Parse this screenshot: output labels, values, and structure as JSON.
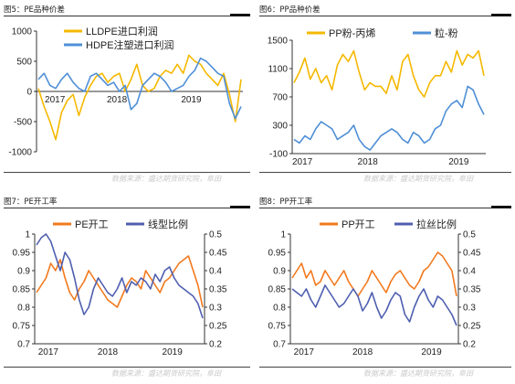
{
  "source_text": "数据来源：盛达期货研究院，阜田",
  "colors": {
    "orange": "#f2791d",
    "blue": "#4f8fd6",
    "yellow": "#f5b800"
  },
  "panels": [
    {
      "id": "p5",
      "title": "图5：PE品种价差",
      "chart_data": {
        "type": "line",
        "ylim": [
          -1000,
          1000
        ],
        "yticks": [
          -1000,
          -500,
          0,
          500,
          1000
        ],
        "x_ticks": [
          "2017",
          "2018",
          "2019"
        ],
        "legend_position": "top-left",
        "series": [
          {
            "name": "LLDPE进口利润",
            "color": "#f5b800",
            "axis": "left",
            "values": [
              50,
              -250,
              -500,
              -800,
              -350,
              -150,
              -50,
              -400,
              -100,
              100,
              250,
              300,
              150,
              250,
              300,
              0,
              200,
              450,
              100,
              0,
              50,
              250,
              350,
              300,
              450,
              300,
              600,
              500,
              450,
              300,
              200,
              100,
              300,
              -50,
              -500,
              200
            ]
          },
          {
            "name": "HDPE注塑进口利润",
            "color": "#4f8fd6",
            "axis": "left",
            "values": [
              200,
              300,
              100,
              50,
              200,
              300,
              150,
              50,
              0,
              250,
              300,
              200,
              100,
              150,
              0,
              100,
              -300,
              -200,
              100,
              200,
              300,
              250,
              150,
              0,
              50,
              100,
              250,
              350,
              550,
              500,
              400,
              300,
              250,
              -200,
              -450,
              -250
            ]
          }
        ]
      }
    },
    {
      "id": "p6",
      "title": "图6：PP品种价差",
      "chart_data": {
        "type": "line",
        "ylim": [
          -100,
          1500
        ],
        "yticks": [
          -100,
          300,
          700,
          1100,
          1500
        ],
        "x_ticks": [
          "2017",
          "2018",
          "2019"
        ],
        "legend_position": "top",
        "series": [
          {
            "name": "PP粉-丙烯",
            "color": "#f5b800",
            "axis": "left",
            "values": [
              900,
              1050,
              1250,
              950,
              1100,
              900,
              1000,
              800,
              1150,
              1300,
              1200,
              1350,
              1050,
              800,
              900,
              850,
              850,
              750,
              1000,
              800,
              1200,
              1300,
              1000,
              800,
              700,
              900,
              1000,
              1000,
              1200,
              1050,
              1350,
              1150,
              1300,
              1250,
              1350,
              1000
            ]
          },
          {
            "name": "粒-粉",
            "color": "#4f8fd6",
            "axis": "left",
            "values": [
              100,
              50,
              150,
              100,
              250,
              350,
              300,
              250,
              100,
              150,
              200,
              300,
              100,
              0,
              -50,
              50,
              150,
              200,
              250,
              200,
              100,
              50,
              200,
              150,
              50,
              100,
              250,
              300,
              500,
              600,
              650,
              550,
              850,
              800,
              600,
              450
            ]
          }
        ]
      }
    },
    {
      "id": "p7",
      "title": "图7：PE开工率",
      "chart_data": {
        "type": "line",
        "ylim": [
          0.7,
          1.0
        ],
        "yticks": [
          0.7,
          0.75,
          0.8,
          0.85,
          0.9,
          0.95,
          1
        ],
        "y2lim": [
          0.2,
          0.5
        ],
        "y2ticks": [
          0.2,
          0.25,
          0.3,
          0.35,
          0.4,
          0.45,
          0.5
        ],
        "x_ticks": [
          "2017",
          "2018",
          "2019"
        ],
        "legend_position": "top",
        "series": [
          {
            "name": "PE开工",
            "color": "#f2791d",
            "axis": "left",
            "values": [
              0.84,
              0.86,
              0.88,
              0.92,
              0.9,
              0.93,
              0.88,
              0.84,
              0.82,
              0.85,
              0.87,
              0.9,
              0.88,
              0.86,
              0.84,
              0.82,
              0.81,
              0.8,
              0.83,
              0.86,
              0.88,
              0.87,
              0.85,
              0.9,
              0.88,
              0.86,
              0.84,
              0.87,
              0.88,
              0.9,
              0.92,
              0.93,
              0.94,
              0.9,
              0.86,
              0.8
            ]
          },
          {
            "name": "线型比例",
            "color": "#4f5fb0",
            "axis": "right",
            "values": [
              0.47,
              0.49,
              0.5,
              0.48,
              0.44,
              0.4,
              0.45,
              0.43,
              0.38,
              0.32,
              0.28,
              0.3,
              0.35,
              0.38,
              0.36,
              0.34,
              0.33,
              0.35,
              0.38,
              0.34,
              0.37,
              0.36,
              0.38,
              0.37,
              0.35,
              0.39,
              0.37,
              0.4,
              0.41,
              0.38,
              0.36,
              0.35,
              0.34,
              0.33,
              0.31,
              0.27
            ]
          }
        ]
      }
    },
    {
      "id": "p8",
      "title": "图8：PP开工率",
      "chart_data": {
        "type": "line",
        "ylim": [
          0.7,
          1.0
        ],
        "yticks": [
          0.7,
          0.75,
          0.8,
          0.85,
          0.9,
          0.95,
          1
        ],
        "y2lim": [
          0.2,
          0.5
        ],
        "y2ticks": [
          0.2,
          0.25,
          0.3,
          0.35,
          0.4,
          0.45,
          0.5
        ],
        "x_ticks": [
          "2017",
          "2018",
          "2019"
        ],
        "legend_position": "top",
        "series": [
          {
            "name": "PP开工",
            "color": "#f2791d",
            "axis": "left",
            "values": [
              0.88,
              0.9,
              0.92,
              0.88,
              0.9,
              0.86,
              0.87,
              0.9,
              0.88,
              0.86,
              0.88,
              0.9,
              0.87,
              0.85,
              0.83,
              0.85,
              0.87,
              0.9,
              0.88,
              0.86,
              0.84,
              0.87,
              0.89,
              0.9,
              0.88,
              0.86,
              0.85,
              0.87,
              0.9,
              0.91,
              0.93,
              0.95,
              0.94,
              0.92,
              0.9,
              0.83
            ]
          },
          {
            "name": "拉丝比例",
            "color": "#4f5fb0",
            "axis": "right",
            "values": [
              0.35,
              0.34,
              0.33,
              0.35,
              0.32,
              0.3,
              0.33,
              0.36,
              0.34,
              0.32,
              0.3,
              0.31,
              0.33,
              0.35,
              0.33,
              0.29,
              0.31,
              0.34,
              0.3,
              0.27,
              0.29,
              0.32,
              0.34,
              0.33,
              0.28,
              0.26,
              0.3,
              0.33,
              0.35,
              0.32,
              0.3,
              0.33,
              0.32,
              0.3,
              0.28,
              0.25
            ]
          }
        ]
      }
    }
  ]
}
